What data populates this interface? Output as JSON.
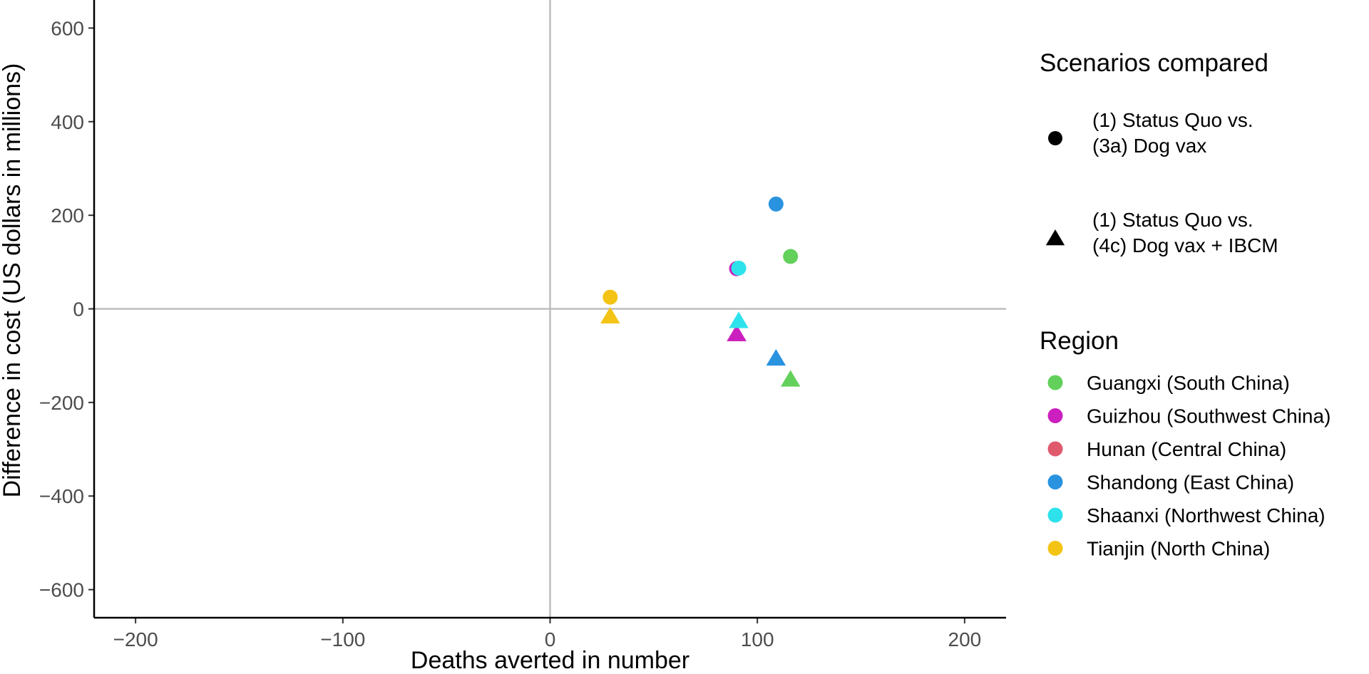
{
  "chart_data": {
    "type": "scatter",
    "title": "",
    "xlabel": "Deaths averted in number",
    "ylabel": "Difference in cost (US dollars in millions)",
    "xlim": [
      -220,
      220
    ],
    "ylim": [
      -660,
      660
    ],
    "x_ticks": [
      -200,
      -100,
      0,
      100,
      200
    ],
    "x_tick_labels": [
      "−200",
      "−100",
      "0",
      "100",
      "200"
    ],
    "y_ticks": [
      -600,
      -400,
      -200,
      0,
      200,
      400,
      600
    ],
    "y_tick_labels": [
      "−600",
      "−400",
      "−200",
      "0",
      "200",
      "400",
      "600"
    ],
    "grid": false,
    "reference_lines": {
      "x": 0,
      "y": 0,
      "color": "#bdbdbd"
    },
    "legend_placement": "right",
    "scenarios": {
      "title": "Scenarios compared",
      "items": [
        {
          "shape": "circle",
          "line1": "(1) Status Quo vs.",
          "line2": "(3a) Dog vax"
        },
        {
          "shape": "triangle",
          "line1": "(1) Status Quo vs.",
          "line2": "(4c) Dog vax + IBCM"
        }
      ]
    },
    "regions": {
      "title": "Region",
      "items": [
        {
          "name": "Guangxi (South China)",
          "color": "#62d05a"
        },
        {
          "name": "Guizhou (Southwest China)",
          "color": "#cc1fbf"
        },
        {
          "name": "Hunan (Central China)",
          "color": "#e05a6e"
        },
        {
          "name": "Shandong (East China)",
          "color": "#2a93e0"
        },
        {
          "name": "Shaanxi (Northwest China)",
          "color": "#2ee2ec"
        },
        {
          "name": "Tianjin (North China)",
          "color": "#f3c416"
        }
      ]
    },
    "series": [
      {
        "region": "Hunan (Central China)",
        "scenario": "(3a) Dog vax",
        "shape": "circle",
        "x": 90,
        "y": 86
      },
      {
        "region": "Guizhou (Southwest China)",
        "scenario": "(3a) Dog vax",
        "shape": "circle",
        "x": 90,
        "y": 86
      },
      {
        "region": "Shaanxi (Northwest China)",
        "scenario": "(3a) Dog vax",
        "shape": "circle",
        "x": 91,
        "y": 87
      },
      {
        "region": "Guangxi (South China)",
        "scenario": "(3a) Dog vax",
        "shape": "circle",
        "x": 116,
        "y": 112
      },
      {
        "region": "Shandong (East China)",
        "scenario": "(3a) Dog vax",
        "shape": "circle",
        "x": 109,
        "y": 224
      },
      {
        "region": "Tianjin (North China)",
        "scenario": "(3a) Dog vax",
        "shape": "circle",
        "x": 29,
        "y": 25
      },
      {
        "region": "Tianjin (North China)",
        "scenario": "(4c) Dog vax + IBCM",
        "shape": "triangle",
        "x": 29,
        "y": -15
      },
      {
        "region": "Hunan (Central China)",
        "scenario": "(4c) Dog vax + IBCM",
        "shape": "triangle",
        "x": 90,
        "y": -53
      },
      {
        "region": "Guizhou (Southwest China)",
        "scenario": "(4c) Dog vax + IBCM",
        "shape": "triangle",
        "x": 90,
        "y": -53
      },
      {
        "region": "Shaanxi (Northwest China)",
        "scenario": "(4c) Dog vax + IBCM",
        "shape": "triangle",
        "x": 91,
        "y": -25
      },
      {
        "region": "Shandong (East China)",
        "scenario": "(4c) Dog vax + IBCM",
        "shape": "triangle",
        "x": 109,
        "y": -105
      },
      {
        "region": "Guangxi (South China)",
        "scenario": "(4c) Dog vax + IBCM",
        "shape": "triangle",
        "x": 116,
        "y": -150
      }
    ]
  }
}
